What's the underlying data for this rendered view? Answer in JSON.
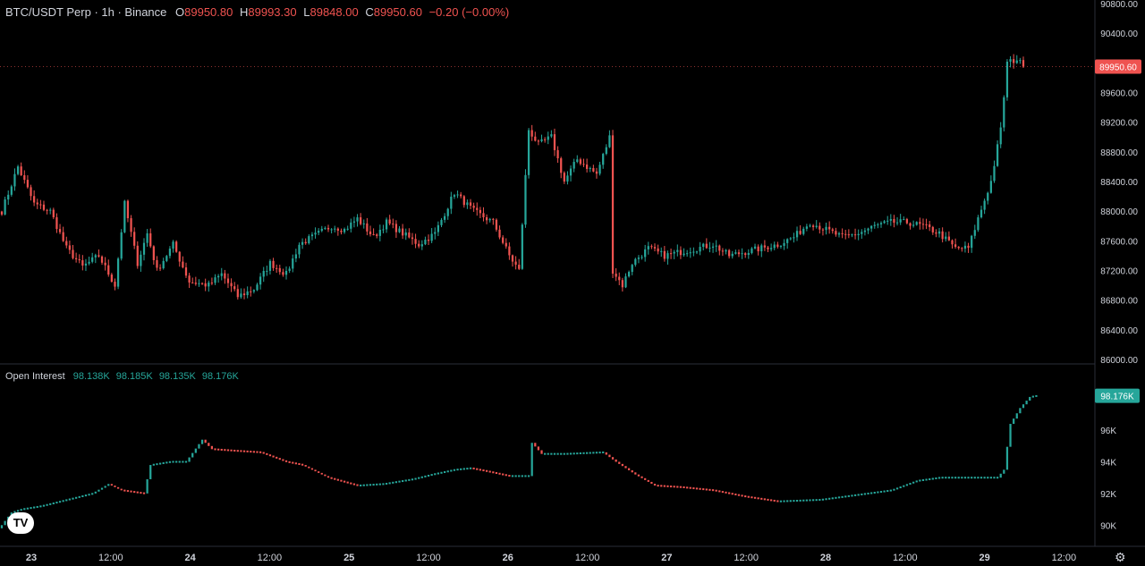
{
  "legend": {
    "symbol": "BTC/USDT Perp · 1h · Binance",
    "o_label": "O",
    "o": "89950.80",
    "h_label": "H",
    "h": "89993.30",
    "l_label": "L",
    "l": "89848.00",
    "c_label": "C",
    "c": "89950.60",
    "change": "−0.20 (−0.00%)"
  },
  "oi_legend": {
    "title": "Open Interest",
    "values": [
      "98.138K",
      "98.185K",
      "98.135K",
      "98.176K"
    ]
  },
  "colors": {
    "up": "#26a69a",
    "down": "#ef5350",
    "background": "#000000",
    "text": "#d1d4dc",
    "separator": "#2a2e39"
  },
  "price_badge": "89950.60",
  "oi_badge": "98.176K",
  "logo_text": "TV",
  "chart_data": [
    {
      "type": "candlestick",
      "name": "BTC/USDT Perp",
      "ylim": [
        86000,
        90800
      ],
      "y_ticks": [
        "90800.00",
        "90400.00",
        "90000.00",
        "89600.00",
        "89200.00",
        "88800.00",
        "88400.00",
        "88000.00",
        "87600.00",
        "87200.00",
        "86800.00",
        "86400.00",
        "86000.00"
      ],
      "x_ticks": [
        "23",
        "12:00",
        "24",
        "12:00",
        "25",
        "12:00",
        "26",
        "12:00",
        "27",
        "12:00",
        "28",
        "12:00",
        "29",
        "12:00"
      ],
      "close_points": [
        [
          0,
          88000
        ],
        [
          5,
          88600
        ],
        [
          10,
          88100
        ],
        [
          15,
          88000
        ],
        [
          20,
          87500
        ],
        [
          25,
          87250
        ],
        [
          30,
          87400
        ],
        [
          35,
          87000
        ],
        [
          38,
          88100
        ],
        [
          42,
          87300
        ],
        [
          45,
          87700
        ],
        [
          48,
          87200
        ],
        [
          53,
          87550
        ],
        [
          58,
          87050
        ],
        [
          64,
          87000
        ],
        [
          68,
          87150
        ],
        [
          73,
          86850
        ],
        [
          78,
          86950
        ],
        [
          83,
          87300
        ],
        [
          88,
          87150
        ],
        [
          92,
          87550
        ],
        [
          96,
          87650
        ],
        [
          102,
          87800
        ],
        [
          106,
          87750
        ],
        [
          110,
          87900
        ],
        [
          115,
          87650
        ],
        [
          119,
          87850
        ],
        [
          124,
          87700
        ],
        [
          129,
          87550
        ],
        [
          134,
          87700
        ],
        [
          140,
          88250
        ],
        [
          146,
          88000
        ],
        [
          152,
          87850
        ],
        [
          157,
          87400
        ],
        [
          160,
          87200
        ],
        [
          163,
          89100
        ],
        [
          166,
          88900
        ],
        [
          170,
          89000
        ],
        [
          174,
          88400
        ],
        [
          178,
          88700
        ],
        [
          184,
          88500
        ],
        [
          188,
          89000
        ],
        [
          189,
          87200
        ],
        [
          192,
          87000
        ],
        [
          195,
          87300
        ],
        [
          200,
          87500
        ],
        [
          205,
          87400
        ],
        [
          210,
          87450
        ],
        [
          215,
          87500
        ],
        [
          220,
          87550
        ],
        [
          225,
          87400
        ],
        [
          230,
          87450
        ],
        [
          235,
          87500
        ],
        [
          240,
          87550
        ],
        [
          245,
          87650
        ],
        [
          250,
          87850
        ],
        [
          255,
          87750
        ],
        [
          260,
          87650
        ],
        [
          265,
          87700
        ],
        [
          270,
          87800
        ],
        [
          275,
          87850
        ],
        [
          280,
          87850
        ],
        [
          285,
          87800
        ],
        [
          290,
          87700
        ],
        [
          295,
          87500
        ],
        [
          299,
          87500
        ],
        [
          302,
          87900
        ],
        [
          306,
          88400
        ],
        [
          309,
          89100
        ],
        [
          311,
          90000
        ],
        [
          314,
          90050
        ],
        [
          316,
          89950
        ]
      ]
    },
    {
      "type": "bar",
      "name": "Open Interest",
      "ylim": [
        89000,
        99000
      ],
      "y_ticks": [
        "96K",
        "94K",
        "92K",
        "90K"
      ],
      "close_points": [
        [
          0,
          90000
        ],
        [
          3,
          90800
        ],
        [
          6,
          91000
        ],
        [
          12,
          91200
        ],
        [
          20,
          91600
        ],
        [
          28,
          92000
        ],
        [
          33,
          92600
        ],
        [
          37,
          92200
        ],
        [
          44,
          92000
        ],
        [
          46,
          93800
        ],
        [
          52,
          94000
        ],
        [
          57,
          94000
        ],
        [
          62,
          95400
        ],
        [
          65,
          94800
        ],
        [
          72,
          94700
        ],
        [
          80,
          94600
        ],
        [
          88,
          94000
        ],
        [
          93,
          93800
        ],
        [
          101,
          93000
        ],
        [
          110,
          92500
        ],
        [
          118,
          92600
        ],
        [
          127,
          92900
        ],
        [
          133,
          93200
        ],
        [
          140,
          93500
        ],
        [
          145,
          93600
        ],
        [
          150,
          93400
        ],
        [
          157,
          93100
        ],
        [
          163,
          93100
        ],
        [
          164,
          95200
        ],
        [
          167,
          94500
        ],
        [
          174,
          94500
        ],
        [
          186,
          94600
        ],
        [
          190,
          94000
        ],
        [
          196,
          93200
        ],
        [
          202,
          92500
        ],
        [
          210,
          92400
        ],
        [
          220,
          92200
        ],
        [
          230,
          91800
        ],
        [
          240,
          91500
        ],
        [
          253,
          91600
        ],
        [
          264,
          91900
        ],
        [
          275,
          92200
        ],
        [
          283,
          92800
        ],
        [
          290,
          93000
        ],
        [
          296,
          93000
        ],
        [
          308,
          93000
        ],
        [
          310,
          93500
        ],
        [
          312,
          96400
        ],
        [
          315,
          97400
        ],
        [
          318,
          98100
        ],
        [
          320,
          98176
        ]
      ]
    }
  ]
}
